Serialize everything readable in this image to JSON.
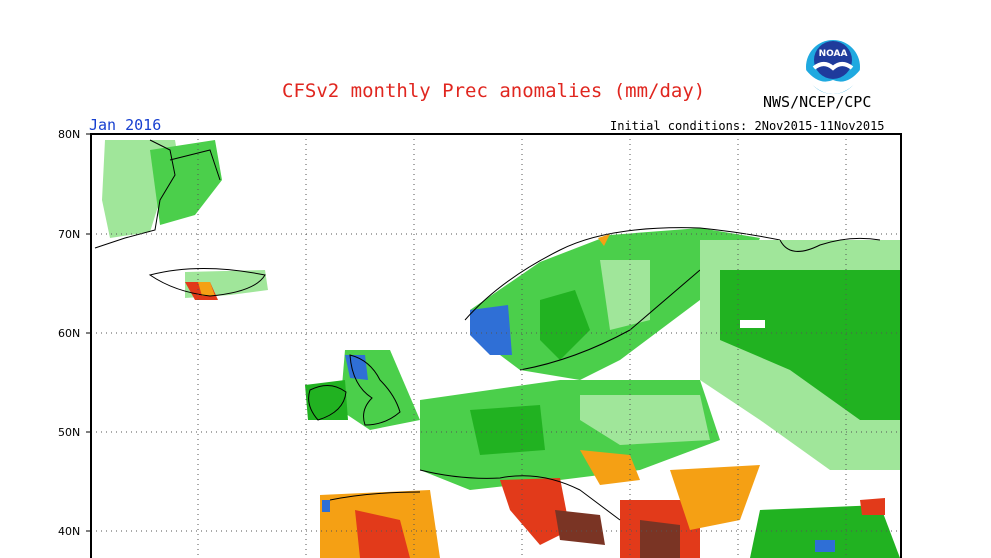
{
  "header": {
    "title": "CFSv2 monthly Prec anomalies (mm/day)",
    "org": "NWS/NCEP/CPC",
    "period": "Jan 2016",
    "init_conditions": "Initial conditions: 2Nov2015-11Nov2015",
    "logo_text": "NOAA"
  },
  "axes": {
    "lat_labels": [
      "80N",
      "70N",
      "60N",
      "50N",
      "40N"
    ]
  },
  "colors": {
    "wet_light": "#a0e69a",
    "wet_mid": "#4bcf4b",
    "wet_dark": "#21b221",
    "very_wet": "#2f6fd6",
    "dry_orange": "#f5a014",
    "dry_red": "#e23a1a",
    "very_dry": "#7a3424",
    "title": "#e0261f",
    "period": "#1740d0"
  }
}
